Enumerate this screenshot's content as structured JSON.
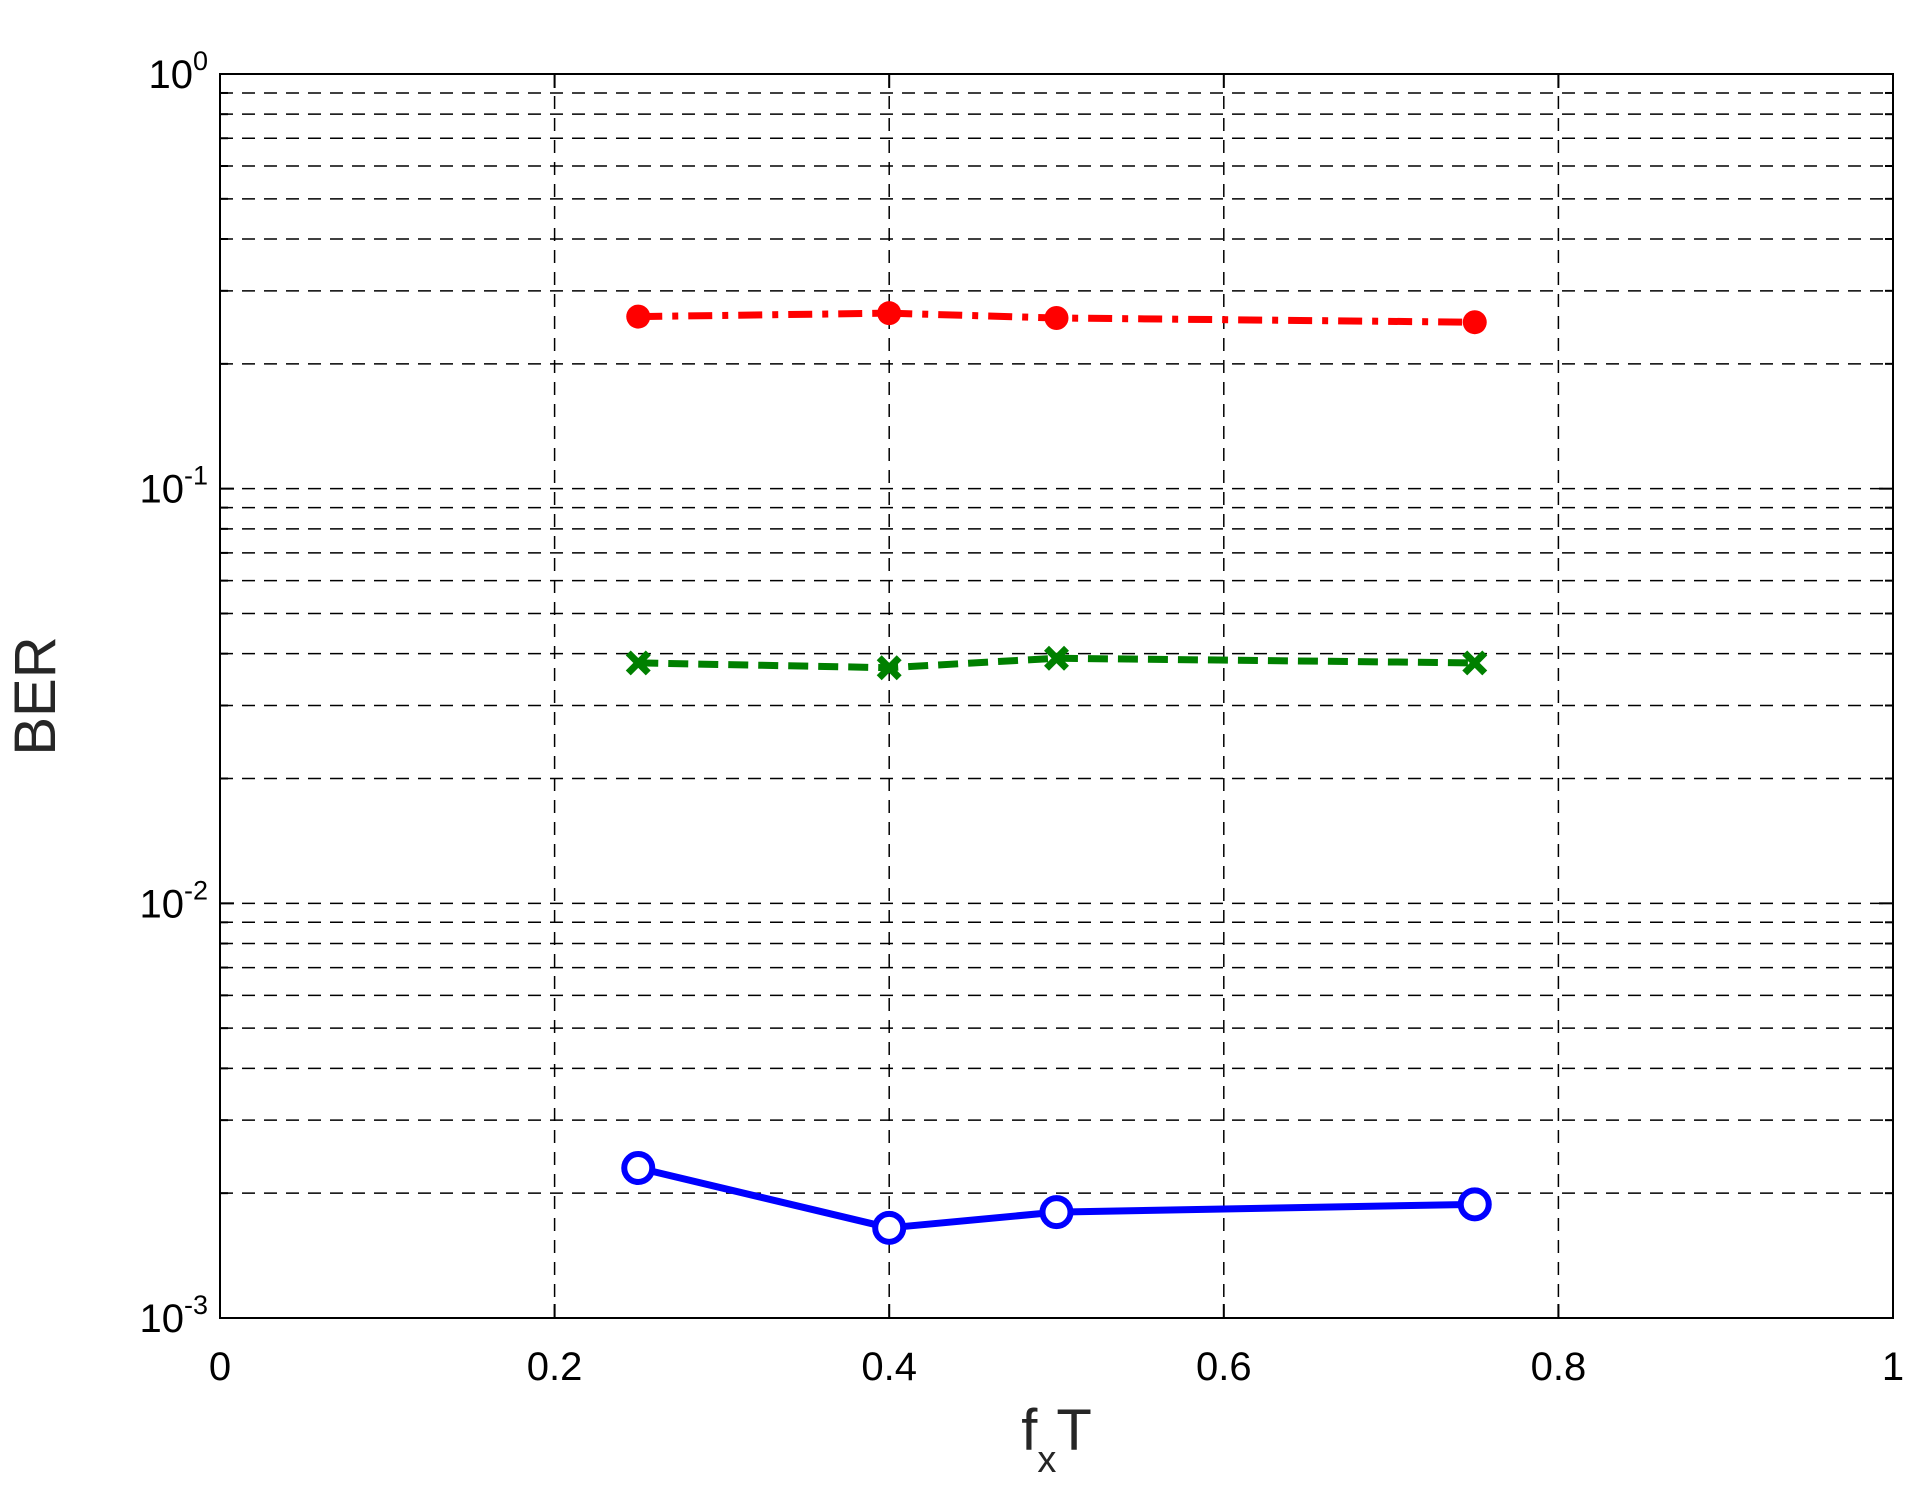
{
  "chart_data": {
    "type": "line",
    "xlabel": {
      "main": "f",
      "sub": "x",
      "tail": "T"
    },
    "ylabel": "BER",
    "xlim": [
      0,
      1
    ],
    "ylim": [
      0.001,
      1
    ],
    "yscale": "log",
    "grid": true,
    "legend": "none",
    "x_ticks": [
      {
        "value": 0,
        "label": "0"
      },
      {
        "value": 0.2,
        "label": "0.2"
      },
      {
        "value": 0.4,
        "label": "0.4"
      },
      {
        "value": 0.6,
        "label": "0.6"
      },
      {
        "value": 0.8,
        "label": "0.8"
      },
      {
        "value": 1,
        "label": "1"
      }
    ],
    "y_ticks": [
      {
        "value": 1,
        "base": "10",
        "exp": "0"
      },
      {
        "value": 0.1,
        "base": "10",
        "exp": "-1"
      },
      {
        "value": 0.01,
        "base": "10",
        "exp": "-2"
      },
      {
        "value": 0.001,
        "base": "10",
        "exp": "-3"
      }
    ],
    "series": [
      {
        "x": [
          0.25,
          0.4,
          0.5,
          0.75
        ],
        "y": [
          0.26,
          0.265,
          0.258,
          0.252
        ],
        "color": "#ff0000",
        "line": "dash-dot",
        "marker": "filled-circle"
      },
      {
        "x": [
          0.25,
          0.4,
          0.5,
          0.75
        ],
        "y": [
          0.038,
          0.037,
          0.039,
          0.038
        ],
        "color": "#008000",
        "line": "dashed",
        "marker": "x"
      },
      {
        "x": [
          0.25,
          0.4,
          0.5,
          0.75
        ],
        "y": [
          0.0023,
          0.00165,
          0.0018,
          0.00188
        ],
        "color": "#0000ff",
        "line": "solid",
        "marker": "open-circle"
      }
    ]
  }
}
